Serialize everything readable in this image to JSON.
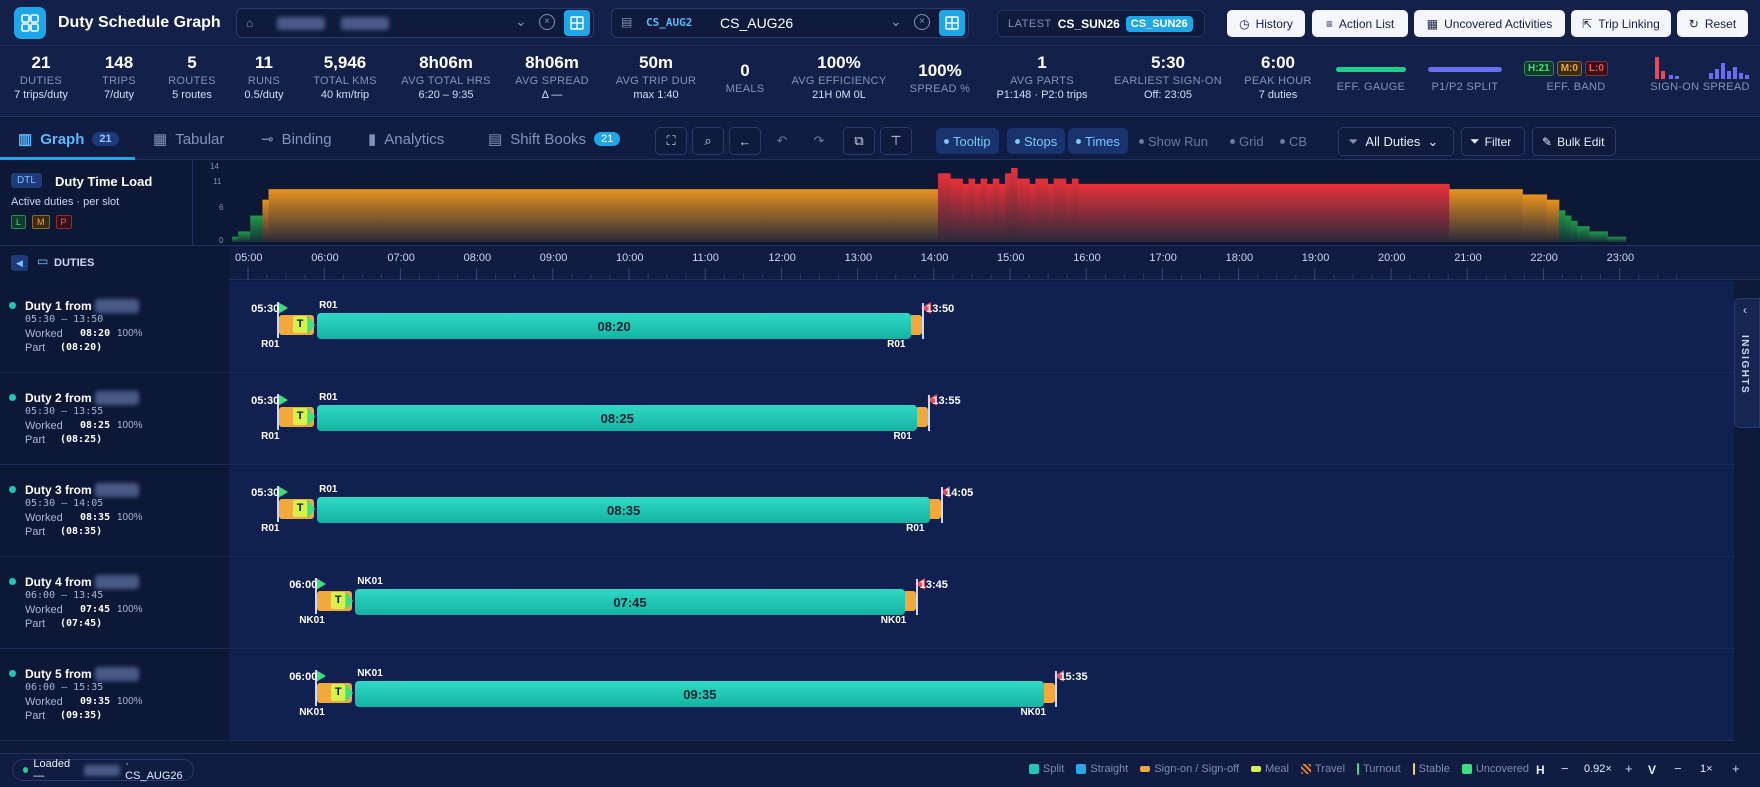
{
  "app": {
    "title": "Duty Schedule Graph"
  },
  "header": {
    "compare": {
      "code": "CS_AUG2",
      "value": "CS_AUG26"
    },
    "latest": {
      "label": "LATEST",
      "name": "CS_SUN26",
      "badge": "CS_SUN26"
    },
    "buttons": {
      "history": "History",
      "action_list": "Action List",
      "uncovered": "Uncovered Activities",
      "trip_linking": "Trip Linking",
      "reset": "Reset"
    }
  },
  "kpis": [
    {
      "value": "21",
      "label": "DUTIES",
      "sub": "7 trips/duty"
    },
    {
      "value": "148",
      "label": "TRIPS",
      "sub": "7/duty"
    },
    {
      "value": "5",
      "label": "ROUTES",
      "sub": "5 routes"
    },
    {
      "value": "11",
      "label": "RUNS",
      "sub": "0.5/duty"
    },
    {
      "value": "5,946",
      "label": "TOTAL KMS",
      "sub": "40 km/trip"
    },
    {
      "value": "8h06m",
      "label": "AVG TOTAL HRS",
      "sub": "6:20 – 9:35"
    },
    {
      "value": "8h06m",
      "label": "AVG SPREAD",
      "sub": "Δ —"
    },
    {
      "value": "50m",
      "label": "AVG TRIP DUR",
      "sub": "max 1:40"
    },
    {
      "value": "0",
      "label": "MEALS",
      "sub": ""
    },
    {
      "value": "100%",
      "label": "AVG EFFICIENCY",
      "sub": "21H 0M 0L"
    },
    {
      "value": "100%",
      "label": "SPREAD %",
      "sub": ""
    },
    {
      "value": "1",
      "label": "AVG PARTS",
      "sub": "P1:148 · P2:0 trips"
    },
    {
      "value": "5:30",
      "label": "EARLIEST SIGN-ON",
      "sub": "Off: 23:05"
    },
    {
      "value": "6:00",
      "label": "PEAK HOUR",
      "sub": "7 duties"
    }
  ],
  "gauges": {
    "eff_gauge": "EFF. GAUGE",
    "split": "P1/P2 SPLIT",
    "band_label": "EFF. BAND",
    "band_h": "H:21",
    "band_m": "M:0",
    "band_l": "L:0",
    "signon": "SIGN-ON SPREAD"
  },
  "tabs": [
    {
      "label": "Graph",
      "badge": "21"
    },
    {
      "label": "Tabular"
    },
    {
      "label": "Binding"
    },
    {
      "label": "Analytics"
    },
    {
      "label": "Shift Books",
      "badge": "21"
    }
  ],
  "toggles": {
    "tooltip": "Tooltip",
    "stops": "Stops",
    "times": "Times",
    "show_run": "Show Run",
    "grid": "Grid",
    "cb": "CB"
  },
  "actions": {
    "all_duties": "All Duties",
    "filter": "Filter",
    "bulk_edit": "Bulk Edit"
  },
  "dtl": {
    "tag": "DTL",
    "title": "Duty Time Load",
    "subtitle": "Active duties · per slot",
    "l": "L",
    "m": "M",
    "p": "P",
    "y_ticks": [
      "14",
      "11",
      "6",
      "0"
    ],
    "values": [
      1,
      2,
      2,
      5,
      5,
      8,
      10,
      10,
      10,
      10,
      10,
      10,
      10,
      10,
      10,
      10,
      10,
      10,
      10,
      10,
      10,
      10,
      10,
      10,
      10,
      10,
      10,
      10,
      10,
      10,
      10,
      10,
      10,
      10,
      10,
      10,
      10,
      10,
      10,
      10,
      10,
      10,
      10,
      10,
      10,
      10,
      10,
      10,
      10,
      10,
      10,
      10,
      10,
      10,
      10,
      10,
      10,
      10,
      10,
      10,
      10,
      10,
      10,
      10,
      10,
      10,
      10,
      10,
      10,
      10,
      10,
      10,
      10,
      10,
      10,
      10,
      10,
      10,
      10,
      10,
      10,
      10,
      10,
      10,
      10,
      10,
      10,
      10,
      10,
      10,
      10,
      10,
      10,
      10,
      10,
      10,
      10,
      10,
      10,
      10,
      10,
      10,
      10,
      10,
      10,
      10,
      10,
      10,
      10,
      10,
      10,
      10,
      10,
      10,
      10,
      10,
      13,
      13,
      12,
      12,
      11,
      12,
      11,
      12,
      11,
      12,
      11,
      13,
      14,
      12,
      12,
      11,
      12,
      12,
      11,
      12,
      12,
      11,
      12,
      11,
      11,
      11,
      11,
      11,
      11,
      11,
      11,
      11,
      11,
      11,
      11,
      11,
      11,
      11,
      11,
      11,
      11,
      11,
      11,
      11,
      11,
      11,
      11,
      11,
      11,
      11,
      11,
      11,
      11,
      11,
      11,
      11,
      11,
      11,
      11,
      11,
      11,
      11,
      11,
      11,
      11,
      11,
      11,
      11,
      11,
      11,
      11,
      11,
      11,
      11,
      11,
      11,
      11,
      11,
      11,
      11,
      11,
      11,
      11,
      11,
      10,
      10,
      10,
      10,
      10,
      10,
      10,
      10,
      10,
      10,
      10,
      10,
      9,
      9,
      9,
      9,
      8,
      8,
      6,
      5,
      4,
      3,
      3,
      2,
      2,
      2,
      1,
      1,
      1,
      0,
      0,
      0
    ]
  },
  "axis": {
    "duties_label": "DUTIES",
    "hours": [
      "05:00",
      "06:00",
      "07:00",
      "08:00",
      "09:00",
      "10:00",
      "11:00",
      "12:00",
      "13:00",
      "14:00",
      "15:00",
      "16:00",
      "17:00",
      "18:00",
      "19:00",
      "20:00",
      "21:00",
      "22:00",
      "23:00"
    ]
  },
  "duties": [
    {
      "name": "Duty 1 from",
      "span": "05:30 – 13:50",
      "worked_label": "Worked",
      "worked": "08:20",
      "pct": "100%",
      "part_label": "Part",
      "part": "(08:20)",
      "start": "05:30",
      "end": "13:50",
      "route": "R01",
      "dur": "08:20"
    },
    {
      "name": "Duty 2 from",
      "span": "05:30 – 13:55",
      "worked_label": "Worked",
      "worked": "08:25",
      "pct": "100%",
      "part_label": "Part",
      "part": "(08:25)",
      "start": "05:30",
      "end": "13:55",
      "route": "R01",
      "dur": "08:25"
    },
    {
      "name": "Duty 3 from",
      "span": "05:30 – 14:05",
      "worked_label": "Worked",
      "worked": "08:35",
      "pct": "100%",
      "part_label": "Part",
      "part": "(08:35)",
      "start": "05:30",
      "end": "14:05",
      "route": "R01",
      "dur": "08:35"
    },
    {
      "name": "Duty 4 from",
      "span": "06:00 – 13:45",
      "worked_label": "Worked",
      "worked": "07:45",
      "pct": "100%",
      "part_label": "Part",
      "part": "(07:45)",
      "start": "06:00",
      "end": "13:45",
      "route": "NK01",
      "dur": "07:45"
    },
    {
      "name": "Duty 5 from",
      "span": "06:00 – 15:35",
      "worked_label": "Worked",
      "worked": "09:35",
      "pct": "100%",
      "part_label": "Part",
      "part": "(09:35)",
      "start": "06:00",
      "end": "15:35",
      "route": "NK01",
      "dur": "09:35"
    }
  ],
  "insights": "INSIGHTS",
  "footer": {
    "loaded": "Loaded —",
    "loaded_code": "· CS_AUG26",
    "legend": [
      {
        "label": "Split",
        "color": "#1fc7b8"
      },
      {
        "label": "Straight",
        "color": "#2aa7e8"
      },
      {
        "label": "Sign-on / Sign-off",
        "color": "#f0a93a"
      },
      {
        "label": "Meal",
        "color": "#d7f04a"
      },
      {
        "label": "Travel",
        "color": "#f07a2a"
      },
      {
        "label": "Turnout",
        "color": "#3be07a"
      },
      {
        "label": "Stable",
        "color": "#f5d637"
      },
      {
        "label": "Uncovered",
        "color": "#3be07a"
      }
    ],
    "h": "H",
    "zoom": "0.92×",
    "v": "V",
    "vzoom": "1×"
  }
}
